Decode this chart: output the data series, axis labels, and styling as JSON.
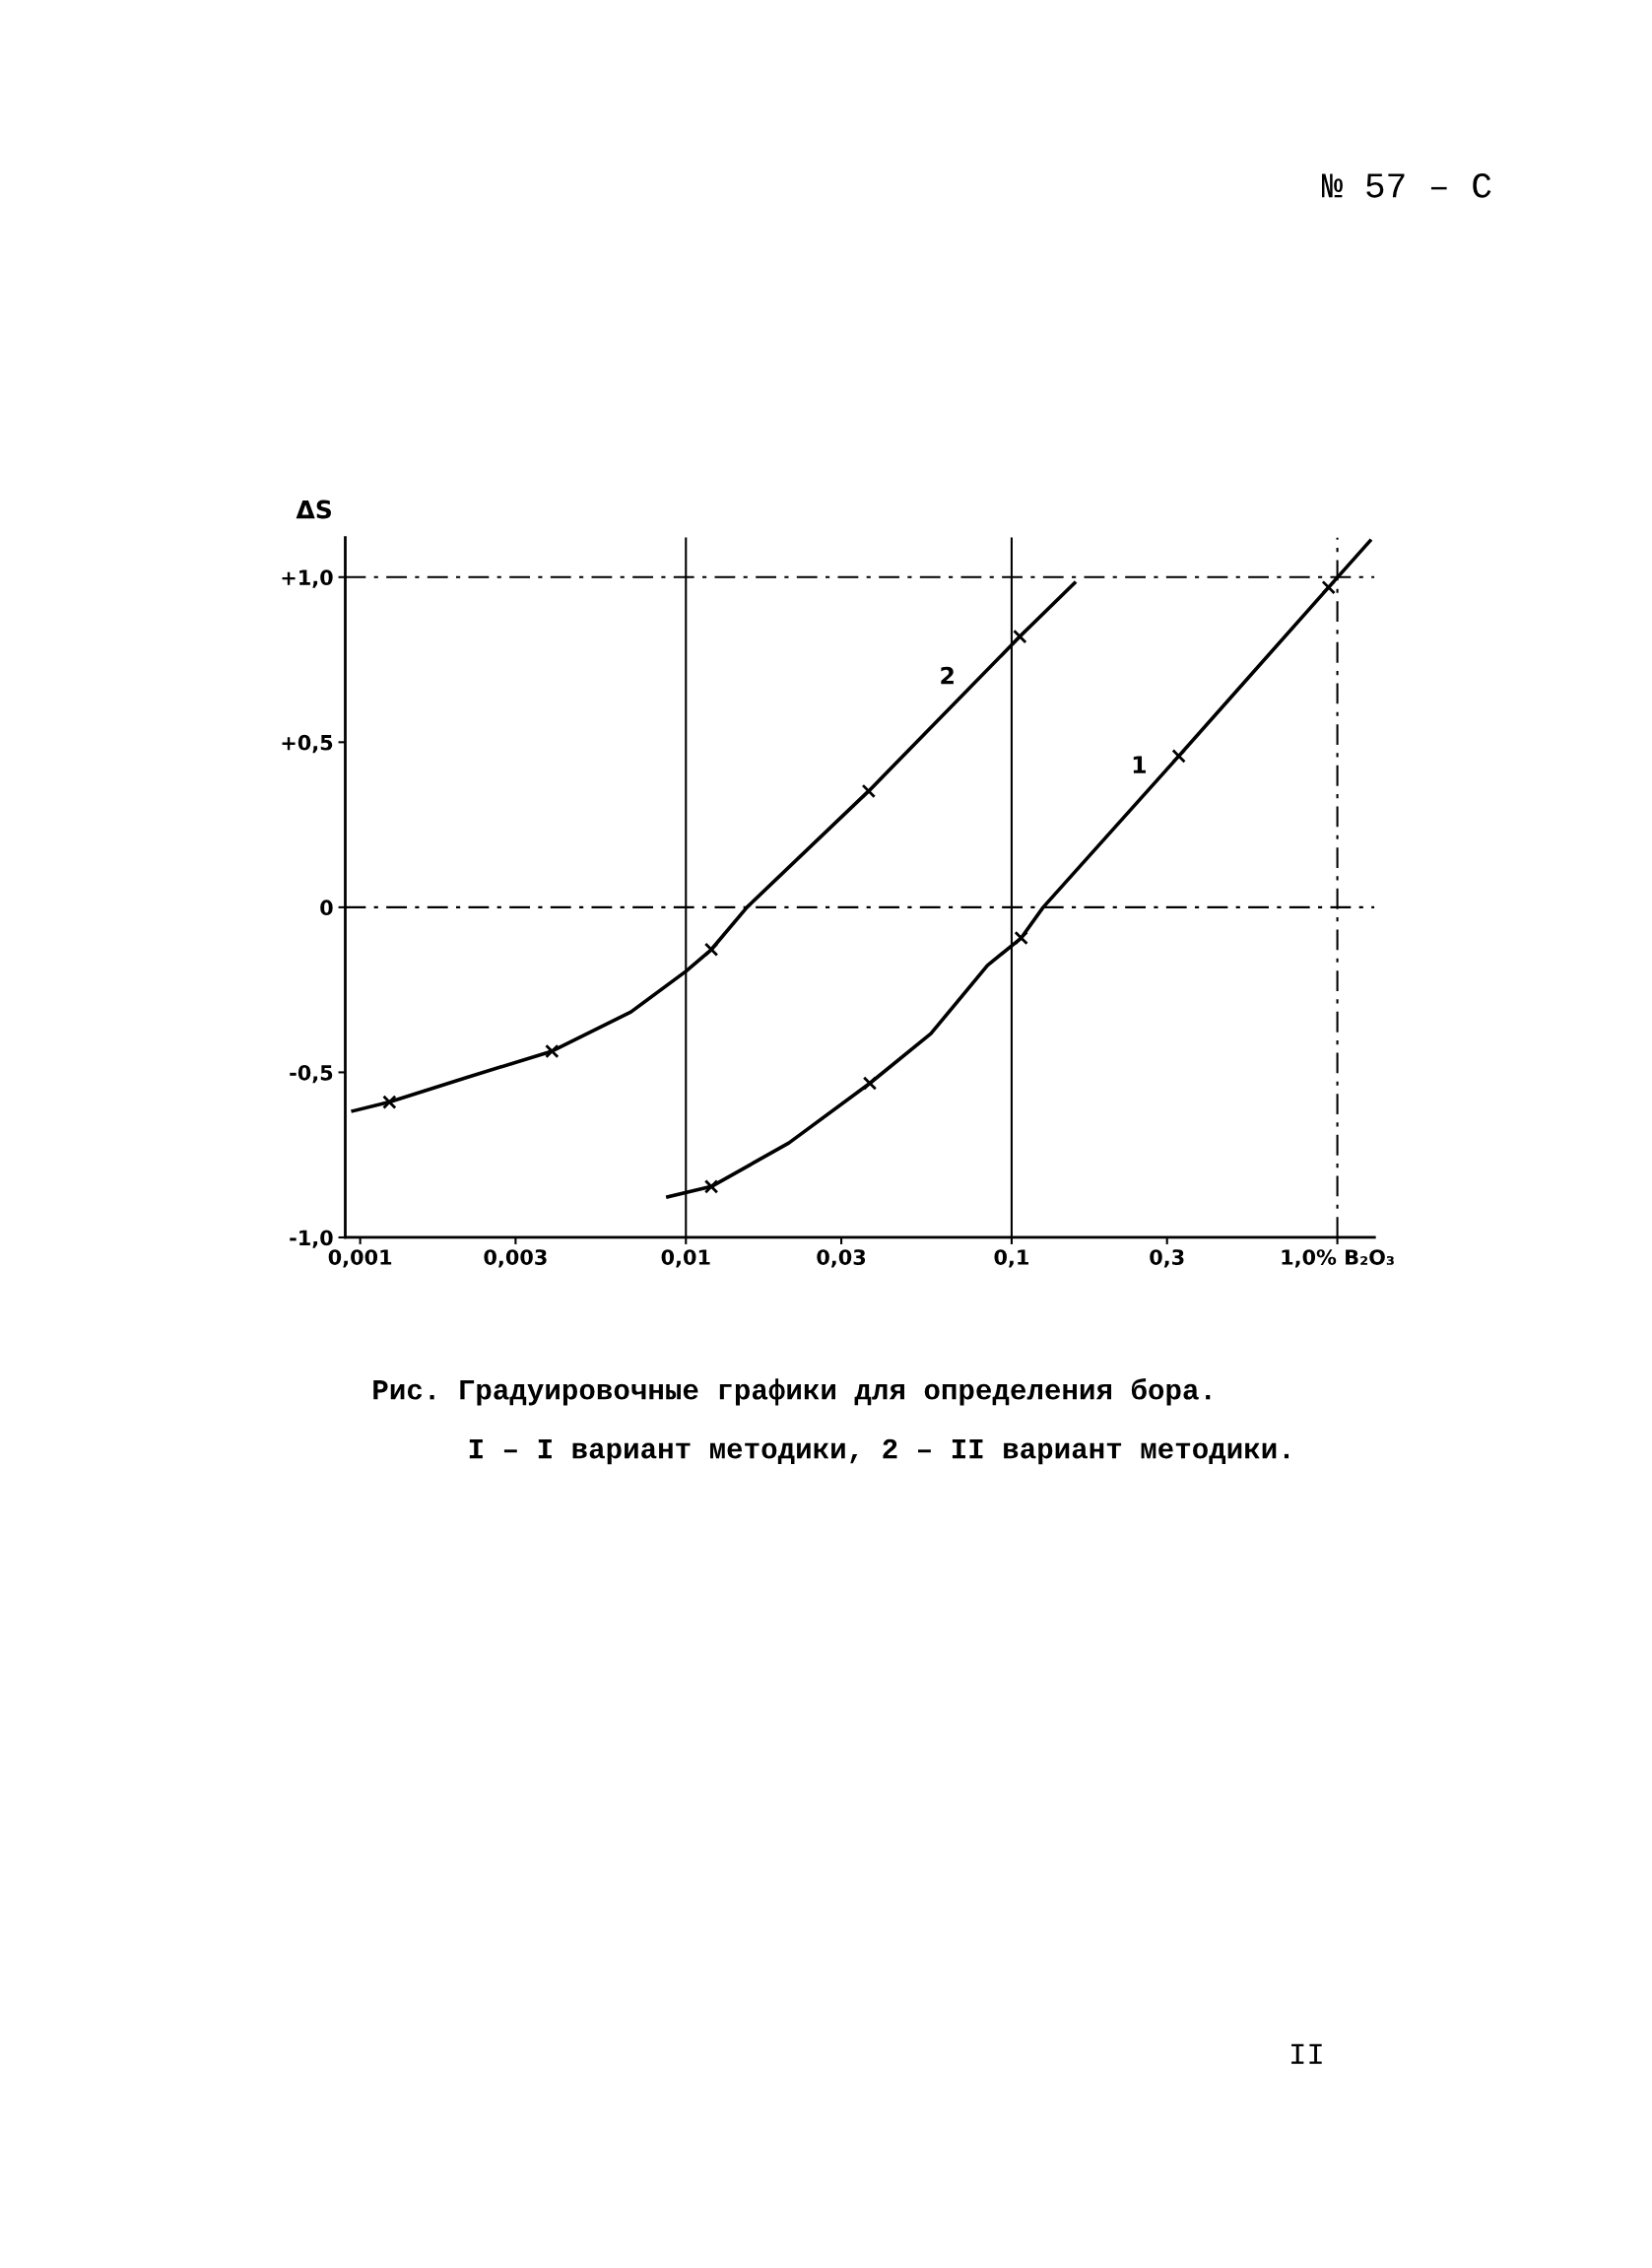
{
  "chart_data": {
    "type": "line",
    "ylabel": "ΔS",
    "annotations": [
      "№ 57 – С",
      "Рис. Градуировочные графики для определения бора.",
      "I – I вариант методики, 2 – II вариант методики.",
      "II",
      {
        "text": "2",
        "x": 0.066,
        "y": 0.61
      },
      {
        "text": "1",
        "x": 0.256,
        "y": 0.34
      }
    ],
    "series": [
      {
        "color": "#000000",
        "x": [
          0.00095,
          0.00123,
          0.00213,
          0.00388,
          0.00678,
          0.01,
          0.01197,
          0.0154,
          0.0364,
          0.106,
          0.156
        ],
        "values": [
          -0.617,
          -0.59,
          -0.515,
          -0.436,
          -0.317,
          -0.194,
          -0.128,
          0.0,
          0.352,
          0.82,
          0.982
        ]
      },
      {
        "color": "#000000",
        "x": [
          0.0088,
          0.01197,
          0.0207,
          0.0367,
          0.0565,
          0.0843,
          0.107,
          0.125,
          0.326,
          0.94,
          1.26
        ],
        "values": [
          -0.877,
          -0.846,
          -0.714,
          -0.533,
          -0.383,
          -0.176,
          -0.093,
          0.0,
          0.458,
          0.969,
          1.11
        ]
      },
      {
        "type": "scatter",
        "color": "#000000",
        "marker": "cross",
        "x": [
          0.00123,
          0.00388,
          0.01197,
          0.0364,
          0.106
        ],
        "values": [
          -0.59,
          -0.436,
          -0.128,
          0.352,
          0.82
        ]
      },
      {
        "type": "scatter",
        "color": "#000000",
        "marker": "cross",
        "x": [
          0.01197,
          0.0367,
          0.107,
          0.326,
          0.94
        ],
        "values": [
          -0.846,
          -0.533,
          -0.093,
          0.458,
          0.969
        ]
      }
    ],
    "log": "x",
    "xlim": [
      0.0009,
      1.3
    ],
    "xticks": [
      {
        "value": 0.001,
        "label": "0,001"
      },
      {
        "value": 0.003,
        "label": "0,003"
      },
      {
        "value": 0.01,
        "label": "0,01"
      },
      {
        "value": 0.03,
        "label": "0,03"
      },
      {
        "value": 0.1,
        "label": "0,1"
      },
      {
        "value": 0.3,
        "label": "0,3"
      },
      {
        "value": 1.0,
        "label": "1,0% B₂O₃"
      }
    ],
    "ylim": [
      -1.0,
      1.12
    ],
    "yticks": [
      {
        "value": -1.0,
        "label": "-1,0"
      },
      {
        "value": -0.5,
        "label": "-0,5"
      },
      0,
      {
        "value": 0.5,
        "label": "+0,5"
      },
      {
        "value": 1.0,
        "label": "+1,0"
      }
    ],
    "ref_lines": [
      {
        "axis": "y",
        "value": 1.0,
        "line_style": "dashed"
      },
      {
        "axis": "y",
        "value": 0,
        "line_style": "dashed"
      },
      {
        "axis": "x",
        "value": 0.01,
        "line_style": "solid"
      },
      {
        "axis": "x",
        "value": 0.1,
        "line_style": "solid"
      },
      {
        "axis": "x",
        "value": 1.0,
        "line_style": "dashed"
      }
    ],
    "grid": false,
    "legend": false
  }
}
